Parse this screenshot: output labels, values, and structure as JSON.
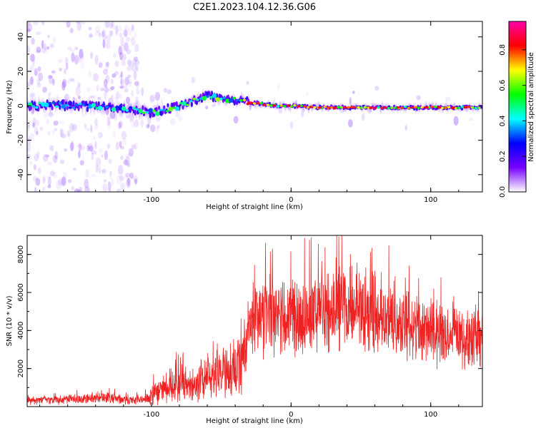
{
  "figure": {
    "title": "C2E1.2023.104.12.36.G06"
  },
  "chart_data": [
    {
      "type": "heatmap",
      "xlabel": "Height of straight line (km)",
      "ylabel": "Frequency (Hz)",
      "xlim": [
        -189,
        137
      ],
      "ylim": [
        -50,
        49
      ],
      "x_ticks": [
        -100,
        0,
        100
      ],
      "x_tick_labels": [
        "-100",
        "0",
        "100"
      ],
      "y_ticks": [
        -40,
        -20,
        0,
        20,
        40
      ],
      "y_tick_labels": [
        "-40",
        "-20",
        "0",
        "20",
        "40"
      ],
      "colormap": [
        "#ffffff",
        "#7700ff",
        "#0000ff",
        "#00ffff",
        "#00ff00",
        "#ffff00",
        "#ff0000",
        "#ff00aa"
      ],
      "ridge": {
        "x": [
          -189,
          -170,
          -150,
          -130,
          -115,
          -105,
          -100,
          -90,
          -80,
          -70,
          -60,
          -50,
          -40,
          -35,
          -30,
          -20,
          -10,
          0,
          20,
          40,
          60,
          80,
          100,
          120,
          137
        ],
        "frequency": [
          0,
          0.5,
          0,
          -1,
          -2,
          -3,
          -4,
          -2,
          0,
          3,
          6,
          4,
          3,
          4,
          2,
          1,
          0,
          0,
          -1,
          -1,
          -1,
          -1,
          -1,
          -1,
          -1
        ]
      },
      "colorbar": {
        "label": "Normalized spectral amplitude",
        "range": [
          0,
          0.96
        ],
        "ticks": [
          0.0,
          0.2,
          0.4,
          0.6,
          0.8
        ],
        "tick_labels": [
          "0.0",
          "0.2",
          "0.4",
          "0.6",
          "0.8"
        ]
      }
    },
    {
      "type": "line",
      "xlabel": "Height of straight line (km)",
      "ylabel": "SNR (10 * v/v)",
      "xlim": [
        -189,
        137
      ],
      "ylim": [
        0,
        9000
      ],
      "x_ticks": [
        -100,
        0,
        100
      ],
      "x_tick_labels": [
        "-100",
        "0",
        "100"
      ],
      "y_ticks": [
        2000,
        4000,
        6000,
        8000
      ],
      "y_tick_labels": [
        "2000",
        "4000",
        "6000",
        "8000"
      ],
      "color": "#ee2222",
      "envelope": {
        "x": [
          -189,
          -170,
          -150,
          -130,
          -115,
          -105,
          -100,
          -90,
          -80,
          -70,
          -60,
          -50,
          -40,
          -35,
          -30,
          -25,
          -20,
          -10,
          0,
          10,
          20,
          30,
          40,
          50,
          60,
          70,
          80,
          90,
          100,
          110,
          120,
          130,
          137
        ],
        "mean": [
          300,
          320,
          400,
          450,
          300,
          350,
          600,
          1100,
          1300,
          1100,
          1600,
          1900,
          1800,
          2600,
          4200,
          4700,
          4600,
          4700,
          4800,
          5000,
          5200,
          5400,
          5200,
          5100,
          4900,
          4700,
          4400,
          4200,
          4000,
          3800,
          3600,
          3500,
          3500
        ],
        "spread": [
          250,
          250,
          350,
          350,
          250,
          300,
          600,
          1100,
          1200,
          1100,
          1300,
          1600,
          1700,
          2000,
          2200,
          2400,
          2500,
          2500,
          2600,
          2600,
          2700,
          2800,
          2700,
          2600,
          2500,
          2400,
          2300,
          2200,
          2100,
          2000,
          1900,
          1800,
          1800
        ],
        "samples_per_km": 6
      }
    }
  ]
}
